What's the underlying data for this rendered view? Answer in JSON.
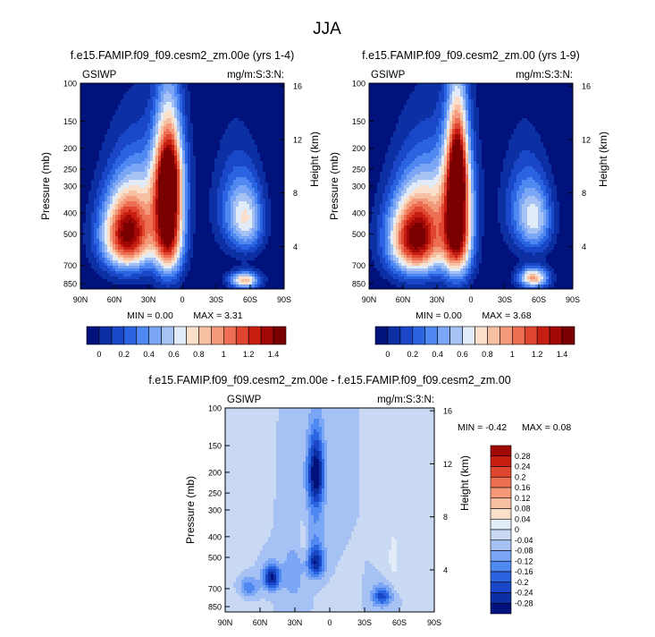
{
  "figure": {
    "title": "JJA"
  },
  "palettes": {
    "abs": [
      "#02127d",
      "#0d2fa4",
      "#1a47c8",
      "#2b64e0",
      "#4f88f0",
      "#7ba5f5",
      "#a6c1f4",
      "#e1ecf8",
      "#fadfca",
      "#f8c0a2",
      "#f49a7a",
      "#ec6f54",
      "#e0462f",
      "#c61f12",
      "#a10806",
      "#7a0000"
    ],
    "diff": [
      "#02127d",
      "#0d2fa4",
      "#1a47c8",
      "#2b64e0",
      "#4f88f0",
      "#7ba5f5",
      "#a6c1f4",
      "#c9d9f4",
      "#e1ecf8",
      "#fadfca",
      "#f8c0a2",
      "#f49a7a",
      "#ec6f54",
      "#e0462f",
      "#c61f12",
      "#a10806"
    ]
  },
  "chart_data": [
    {
      "type": "heatmap",
      "id": "p1",
      "title": "f.e15.FAMIP.f09_f09.cesm2_zm.00e (yrs 1-4)",
      "left_label": "GSIWP",
      "right_label": "mg/m:S:3:N:",
      "ylabel": "Pressure (mb)",
      "y2label": "Height (km)",
      "xticks": [
        "90N",
        "60N",
        "30N",
        "0",
        "30S",
        "60S",
        "90S"
      ],
      "yticks": [
        "100",
        "150",
        "200",
        "250",
        "300",
        "400",
        "500",
        "700",
        "850"
      ],
      "y2ticks": [
        "16",
        "12",
        "8",
        "4"
      ],
      "min_label": "MIN =  0.00",
      "max_label": "MAX =  3.31",
      "colorbar_labels": [
        "0",
        "0.2",
        "0.4",
        "0.6",
        "0.8",
        "1",
        "1.2",
        "1.4"
      ],
      "blobs": [
        {
          "lat": 48,
          "p": 500,
          "sx": 16,
          "sy": 150,
          "amp": 1.55
        },
        {
          "lat": 12,
          "p": 450,
          "sx": 9,
          "sy": 200,
          "amp": 1.6
        },
        {
          "lat": 12,
          "p": 250,
          "sx": 8,
          "sy": 80,
          "amp": 0.7
        },
        {
          "lat": 25,
          "p": 300,
          "sx": 18,
          "sy": 110,
          "amp": 0.3
        },
        {
          "lat": -55,
          "p": 820,
          "sx": 9,
          "sy": 50,
          "amp": 0.95
        },
        {
          "lat": -58,
          "p": 430,
          "sx": 10,
          "sy": 110,
          "amp": 0.6
        },
        {
          "lat": -45,
          "p": 380,
          "sx": 12,
          "sy": 130,
          "amp": 0.35
        }
      ]
    },
    {
      "type": "heatmap",
      "id": "p2",
      "title": "f.e15.FAMIP.f09_f09.cesm2_zm.00 (yrs 1-9)",
      "left_label": "GSIWP",
      "right_label": "mg/m:S:3:N:",
      "ylabel": "Pressure (mb)",
      "y2label": "Height (km)",
      "xticks": [
        "90N",
        "60N",
        "30N",
        "0",
        "30S",
        "60S",
        "90S"
      ],
      "yticks": [
        "100",
        "150",
        "200",
        "250",
        "300",
        "400",
        "500",
        "700",
        "850"
      ],
      "y2ticks": [
        "16",
        "12",
        "8",
        "4"
      ],
      "min_label": "MIN =  0.00",
      "max_label": "MAX =  3.68",
      "colorbar_labels": [
        "0",
        "0.2",
        "0.4",
        "0.6",
        "0.8",
        "1",
        "1.2",
        "1.4"
      ],
      "blobs": [
        {
          "lat": 48,
          "p": 520,
          "sx": 17,
          "sy": 160,
          "amp": 1.6
        },
        {
          "lat": 12,
          "p": 470,
          "sx": 9,
          "sy": 200,
          "amp": 1.6
        },
        {
          "lat": 12,
          "p": 230,
          "sx": 6,
          "sy": 90,
          "amp": 0.9
        },
        {
          "lat": 25,
          "p": 300,
          "sx": 18,
          "sy": 110,
          "amp": 0.3
        },
        {
          "lat": -55,
          "p": 800,
          "sx": 9,
          "sy": 60,
          "amp": 1.0
        },
        {
          "lat": -58,
          "p": 430,
          "sx": 10,
          "sy": 110,
          "amp": 0.55
        },
        {
          "lat": -45,
          "p": 380,
          "sx": 12,
          "sy": 130,
          "amp": 0.35
        }
      ]
    },
    {
      "type": "heatmap",
      "id": "diff",
      "title": "f.e15.FAMIP.f09_f09.cesm2_zm.00e - f.e15.FAMIP.f09_f09.cesm2_zm.00",
      "left_label": "GSIWP",
      "right_label": "mg/m:S:3:N:",
      "ylabel": "Pressure (mb)",
      "y2label": "Height (km)",
      "xticks": [
        "90N",
        "60N",
        "30N",
        "0",
        "30S",
        "60S",
        "90S"
      ],
      "yticks": [
        "100",
        "150",
        "200",
        "250",
        "300",
        "400",
        "500",
        "700",
        "850"
      ],
      "y2ticks": [
        "16",
        "12",
        "8",
        "4"
      ],
      "min_label": "MIN = -0.42",
      "max_label": "MAX =  0.08",
      "colorbar_labels": [
        "0.28",
        "0.24",
        "0.2",
        "0.16",
        "0.12",
        "0.08",
        "0.04",
        "0",
        "-0.04",
        "-0.08",
        "-0.12",
        "-0.16",
        "-0.2",
        "-0.24",
        "-0.28"
      ],
      "blobs": [
        {
          "lat": 12,
          "p": 200,
          "sx": 5,
          "sy": 55,
          "amp": -0.26
        },
        {
          "lat": 12,
          "p": 350,
          "sx": 6,
          "sy": 120,
          "amp": -0.07
        },
        {
          "lat": 12,
          "p": 530,
          "sx": 5,
          "sy": 60,
          "amp": -0.22
        },
        {
          "lat": 50,
          "p": 620,
          "sx": 5,
          "sy": 60,
          "amp": -0.25
        },
        {
          "lat": 70,
          "p": 700,
          "sx": 6,
          "sy": 60,
          "amp": -0.12
        },
        {
          "lat": -45,
          "p": 760,
          "sx": 6,
          "sy": 60,
          "amp": -0.18
        },
        {
          "lat": 32,
          "p": 600,
          "sx": 6,
          "sy": 120,
          "amp": -0.08
        },
        {
          "lat": -55,
          "p": 500,
          "sx": 5,
          "sy": 150,
          "amp": 0.05
        },
        {
          "lat": 80,
          "p": 350,
          "sx": 8,
          "sy": 200,
          "amp": 0.03
        },
        {
          "lat": 65,
          "p": 280,
          "sx": 5,
          "sy": 80,
          "amp": 0.03
        },
        {
          "lat": 22,
          "p": 420,
          "sx": 3,
          "sy": 60,
          "amp": 0.04
        },
        {
          "lat": -10,
          "p": 780,
          "sx": 8,
          "sy": 80,
          "amp": 0.03
        },
        {
          "lat": 75,
          "p": 780,
          "sx": 10,
          "sy": 60,
          "amp": 0.03
        }
      ],
      "base": -0.02
    }
  ]
}
